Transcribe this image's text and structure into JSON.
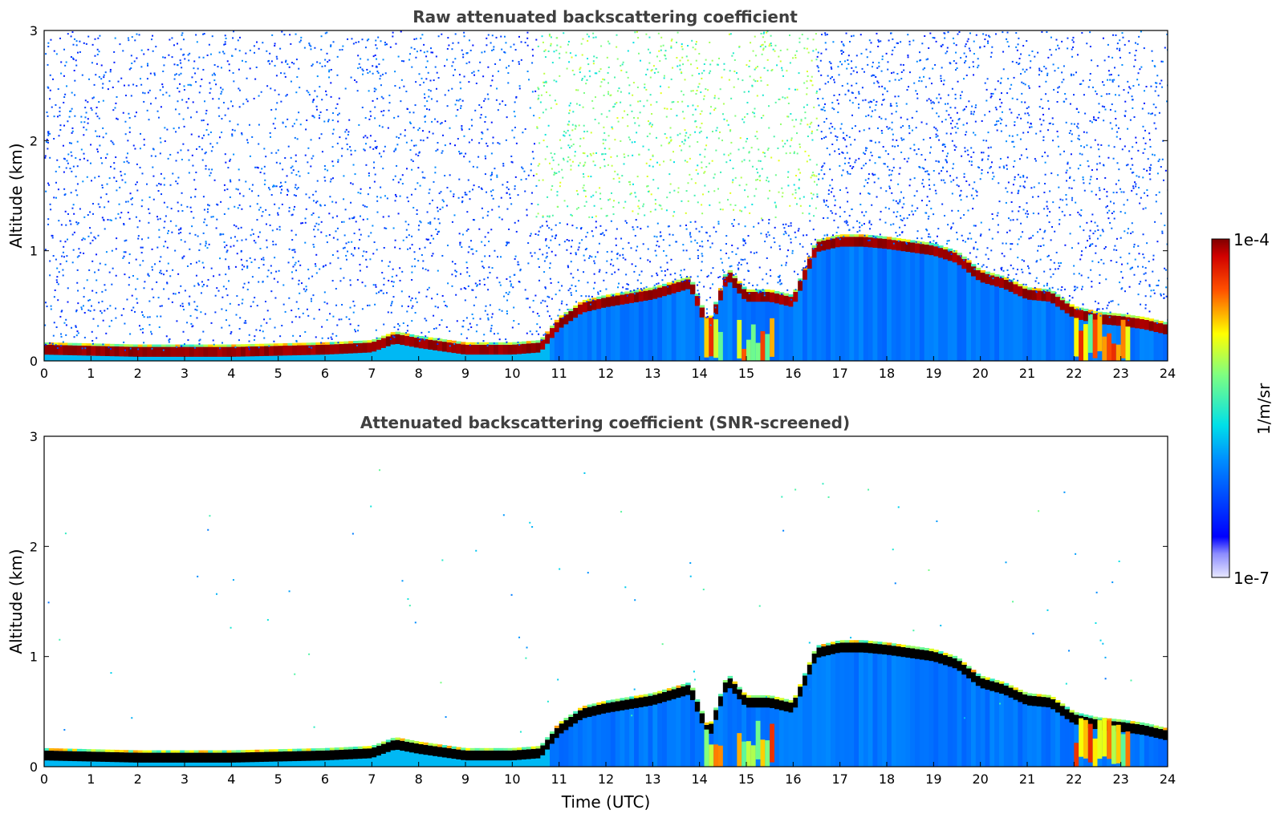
{
  "chart_data": [
    {
      "type": "heatmap",
      "title": "Raw attenuated backscattering coefficient",
      "xlabel": "",
      "ylabel": "Altitude (km)",
      "xlim": [
        0,
        24
      ],
      "ylim": [
        0,
        3
      ],
      "x_ticks": [
        "0",
        "1",
        "2",
        "3",
        "4",
        "5",
        "6",
        "7",
        "8",
        "9",
        "10",
        "11",
        "12",
        "13",
        "14",
        "15",
        "16",
        "17",
        "18",
        "19",
        "20",
        "21",
        "22",
        "23",
        "24"
      ],
      "y_ticks": [
        "0",
        "1",
        "2",
        "3"
      ],
      "layer_top_km": {
        "time": [
          0,
          2,
          4,
          6,
          7,
          7.5,
          8,
          9,
          10,
          10.6,
          11,
          11.5,
          12,
          13,
          13.8,
          14.2,
          14.6,
          15,
          15.5,
          16,
          16.5,
          17,
          17.5,
          18,
          18.5,
          19,
          19.5,
          20,
          20.5,
          21,
          21.5,
          22,
          22.5,
          23,
          23.5,
          24
        ],
        "value": [
          0.12,
          0.1,
          0.1,
          0.12,
          0.14,
          0.22,
          0.18,
          0.12,
          0.12,
          0.14,
          0.35,
          0.5,
          0.55,
          0.62,
          0.72,
          0.3,
          0.8,
          0.6,
          0.6,
          0.55,
          1.05,
          1.1,
          1.1,
          1.08,
          1.05,
          1.02,
          0.95,
          0.78,
          0.72,
          0.62,
          0.6,
          0.45,
          0.4,
          0.38,
          0.35,
          0.3
        ]
      },
      "noise": "high"
    },
    {
      "type": "heatmap",
      "title": "Attenuated backscattering coefficient (SNR-screened)",
      "xlabel": "Time (UTC)",
      "ylabel": "Altitude (km)",
      "xlim": [
        0,
        24
      ],
      "ylim": [
        0,
        3
      ],
      "x_ticks": [
        "0",
        "1",
        "2",
        "3",
        "4",
        "5",
        "6",
        "7",
        "8",
        "9",
        "10",
        "11",
        "12",
        "13",
        "14",
        "15",
        "16",
        "17",
        "18",
        "19",
        "20",
        "21",
        "22",
        "23",
        "24"
      ],
      "y_ticks": [
        "0",
        "1",
        "2",
        "3"
      ],
      "noise": "screened"
    }
  ],
  "colorbar": {
    "label": "1/m/sr",
    "max_label": "1e-4",
    "min_label": "1e-7",
    "colormap": "jet"
  }
}
